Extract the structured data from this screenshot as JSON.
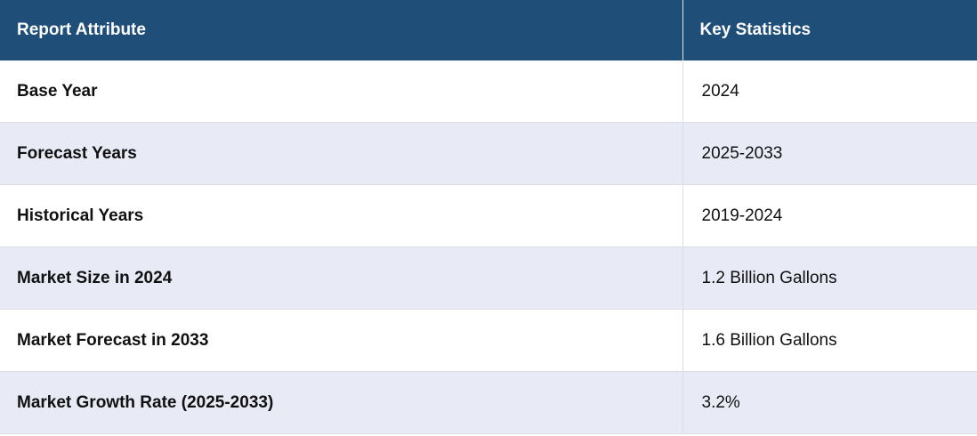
{
  "table": {
    "header": [
      "Report Attribute",
      "Key Statistics"
    ],
    "rows": [
      [
        "Base Year",
        "2024"
      ],
      [
        "Forecast Years",
        "2025-2033"
      ],
      [
        "Historical Years",
        "2019-2024"
      ],
      [
        "Market Size in 2024",
        "1.2 Billion Gallons"
      ],
      [
        "Market Forecast in 2033",
        "1.6 Billion Gallons"
      ],
      [
        "Market Growth Rate (2025-2033)",
        "3.2%"
      ]
    ]
  }
}
